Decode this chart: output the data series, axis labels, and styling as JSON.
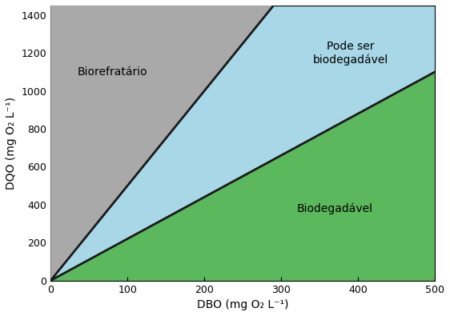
{
  "xlim": [
    0,
    500
  ],
  "ylim": [
    0,
    1450
  ],
  "xticks": [
    0,
    100,
    200,
    300,
    400,
    500
  ],
  "yticks": [
    0,
    200,
    400,
    600,
    800,
    1000,
    1200,
    1400
  ],
  "xlabel": "DBO (mg O₂ L⁻¹)",
  "ylabel": "DQO (mg O₂ L⁻¹)",
  "upper_line_slope": 5.0,
  "lower_line_slope": 2.2,
  "color_gray": "#a9a9a9",
  "color_lightblue": "#a8d8e8",
  "color_green": "#5cb85c",
  "label_biorefratorio": "Biorefratário",
  "label_pode_ser": "Pode ser\nbiodegadável",
  "label_biodegradavel": "Biodegadável",
  "line_color": "#1a1a1a",
  "line_width": 2.0,
  "background_color": "#ffffff",
  "label_fontsize": 10,
  "axis_label_fontsize": 10,
  "tick_fontsize": 9
}
